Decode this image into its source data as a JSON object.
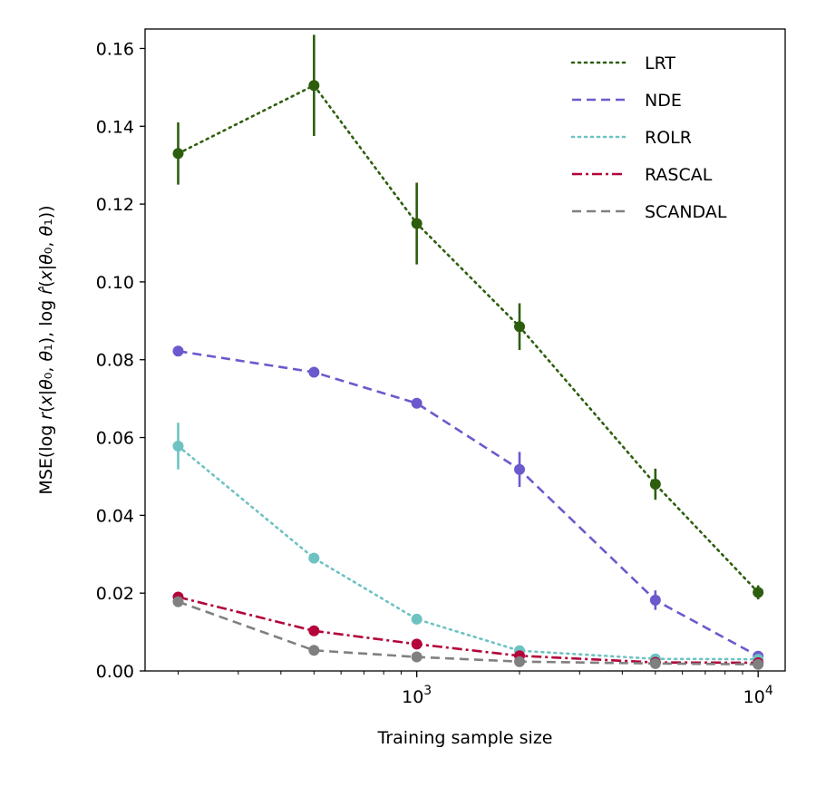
{
  "chart_data": {
    "type": "line",
    "xscale": "log",
    "xlabel": "Training sample size",
    "ylabel": "MSE(log r(x|θ₀, θ₁), log r̂(x|θ₀, θ₁))",
    "xlim": [
      160,
      12000
    ],
    "ylim": [
      0,
      0.165
    ],
    "x": [
      200,
      500,
      1000,
      2000,
      5000,
      10000
    ],
    "xtick_labels": [
      {
        "value": 1000,
        "base": "10",
        "exp": "3"
      },
      {
        "value": 10000,
        "base": "10",
        "exp": "4"
      }
    ],
    "yticks": [
      0.0,
      0.02,
      0.04,
      0.06,
      0.08,
      0.1,
      0.12,
      0.14,
      0.16
    ],
    "ytick_labels": [
      "0.00",
      "0.02",
      "0.04",
      "0.06",
      "0.08",
      "0.10",
      "0.12",
      "0.14",
      "0.16"
    ],
    "legend_position": "top-right",
    "series": [
      {
        "name": "LRT",
        "color": "#2d5e0e",
        "dash": "2,5",
        "values": [
          0.133,
          0.1505,
          0.115,
          0.0885,
          0.048,
          0.0202
        ],
        "errors": [
          0.008,
          0.013,
          0.0105,
          0.006,
          0.004,
          0.0018
        ]
      },
      {
        "name": "NDE",
        "color": "#6a5acd",
        "dash": "10,6",
        "values": [
          0.0822,
          0.0768,
          0.0688,
          0.0518,
          0.0182,
          0.0038
        ],
        "errors": [
          0.0006,
          0.0006,
          0.0006,
          0.0045,
          0.0025,
          0.0008
        ]
      },
      {
        "name": "ROLR",
        "color": "#6ec2c2",
        "dash": "2,5",
        "values": [
          0.0578,
          0.029,
          0.0133,
          0.0052,
          0.0031,
          0.003
        ],
        "errors": [
          0.006,
          0.0012,
          0.0005,
          0.0005,
          0.0004,
          0.0003
        ]
      },
      {
        "name": "RASCAL",
        "color": "#b3053a",
        "dash": "11,4,3,4",
        "values": [
          0.019,
          0.0103,
          0.0069,
          0.0039,
          0.0022,
          0.0021
        ],
        "errors": [
          0.0004,
          0.0004,
          0.0003,
          0.0003,
          0.0003,
          0.0003
        ]
      },
      {
        "name": "SCANDAL",
        "color": "#808080",
        "dash": "10,6",
        "values": [
          0.0178,
          0.0053,
          0.0036,
          0.0024,
          0.0019,
          0.0017
        ],
        "errors": [
          0.0004,
          0.0004,
          0.0003,
          0.0003,
          0.0003,
          0.0003
        ]
      }
    ]
  }
}
